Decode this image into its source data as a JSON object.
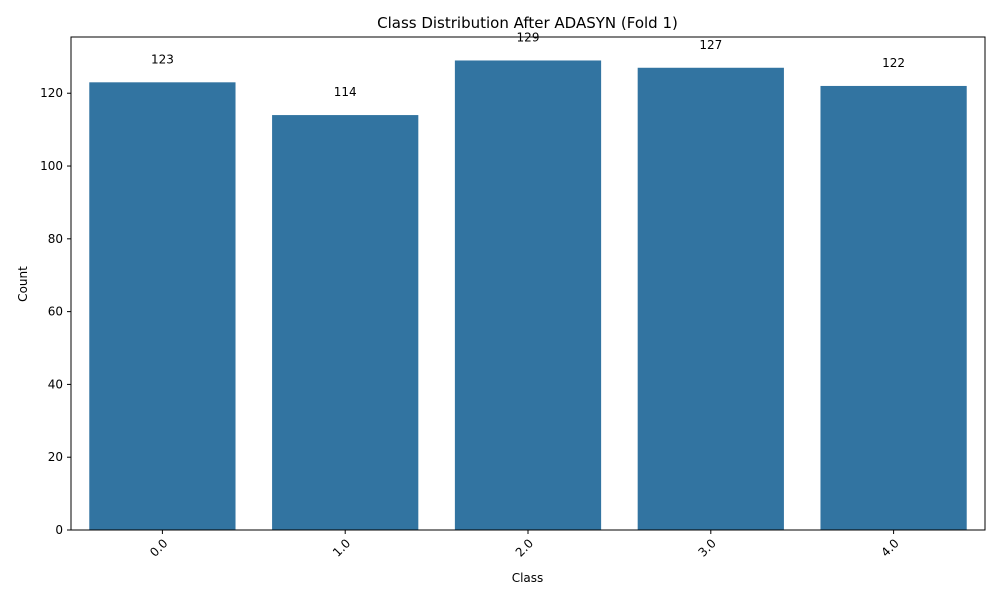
{
  "chart_data": {
    "type": "bar",
    "title": "Class Distribution After ADASYN (Fold 1)",
    "xlabel": "Class",
    "ylabel": "Count",
    "categories": [
      "0.0",
      "1.0",
      "2.0",
      "3.0",
      "4.0"
    ],
    "values": [
      123,
      114,
      129,
      127,
      122
    ],
    "data_labels": [
      "123",
      "114",
      "129",
      "127",
      "122"
    ],
    "y_ticks": [
      0,
      20,
      40,
      60,
      80,
      100,
      120
    ],
    "ylim": [
      0,
      135.45
    ],
    "x_tick_rotation_deg": 45,
    "grid": false,
    "legend": "none",
    "bar_color": "#3274a1"
  }
}
